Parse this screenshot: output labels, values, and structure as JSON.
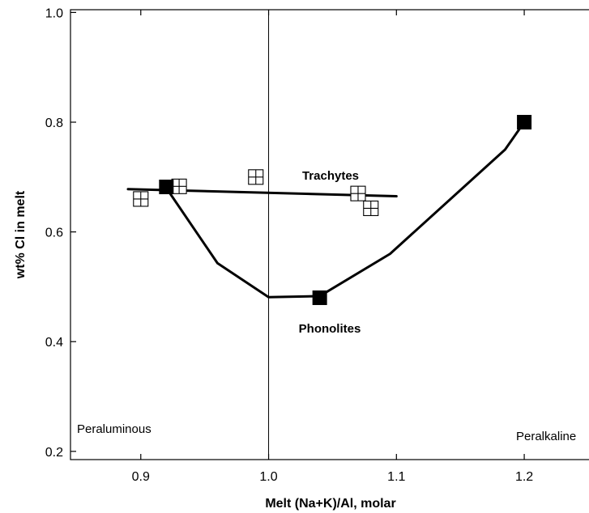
{
  "chart_data": {
    "type": "scatter",
    "xlabel": "Melt (Na+K)/Al, molar",
    "ylabel": "wt% Cl in melt",
    "xlim": [
      0.845,
      1.257
    ],
    "ylim": [
      0.185,
      1.005
    ],
    "xticks": [
      0.9,
      1.0,
      1.1,
      1.2
    ],
    "yticks": [
      0.2,
      0.4,
      0.6,
      0.8,
      1.0
    ],
    "xtick_labels": [
      "0.9",
      "1.0",
      "1.1",
      "1.2"
    ],
    "ytick_labels": [
      "0.2",
      "0.4",
      "0.6",
      "0.8",
      "1.0"
    ],
    "reference_line_x": 1.0,
    "grid": false,
    "region_labels": {
      "left": "Peraluminous",
      "right": "Peralkaline"
    },
    "series": [
      {
        "name": "Trachytes",
        "marker": "open-square-cross",
        "points": [
          {
            "x": 0.9,
            "y": 0.66
          },
          {
            "x": 0.93,
            "y": 0.683
          },
          {
            "x": 0.99,
            "y": 0.7
          },
          {
            "x": 1.07,
            "y": 0.67
          },
          {
            "x": 1.08,
            "y": 0.643
          }
        ],
        "trend_line": [
          {
            "x": 0.89,
            "y": 0.678
          },
          {
            "x": 1.1,
            "y": 0.665
          }
        ]
      },
      {
        "name": "Phonolites",
        "marker": "filled-square",
        "points": [
          {
            "x": 0.92,
            "y": 0.682
          },
          {
            "x": 1.04,
            "y": 0.48
          },
          {
            "x": 1.2,
            "y": 0.8
          }
        ],
        "trend_line": [
          {
            "x": 0.92,
            "y": 0.68
          },
          {
            "x": 0.96,
            "y": 0.543
          },
          {
            "x": 1.0,
            "y": 0.481
          },
          {
            "x": 1.04,
            "y": 0.483
          },
          {
            "x": 1.095,
            "y": 0.56
          },
          {
            "x": 1.185,
            "y": 0.75
          },
          {
            "x": 1.2,
            "y": 0.8
          }
        ]
      }
    ]
  }
}
